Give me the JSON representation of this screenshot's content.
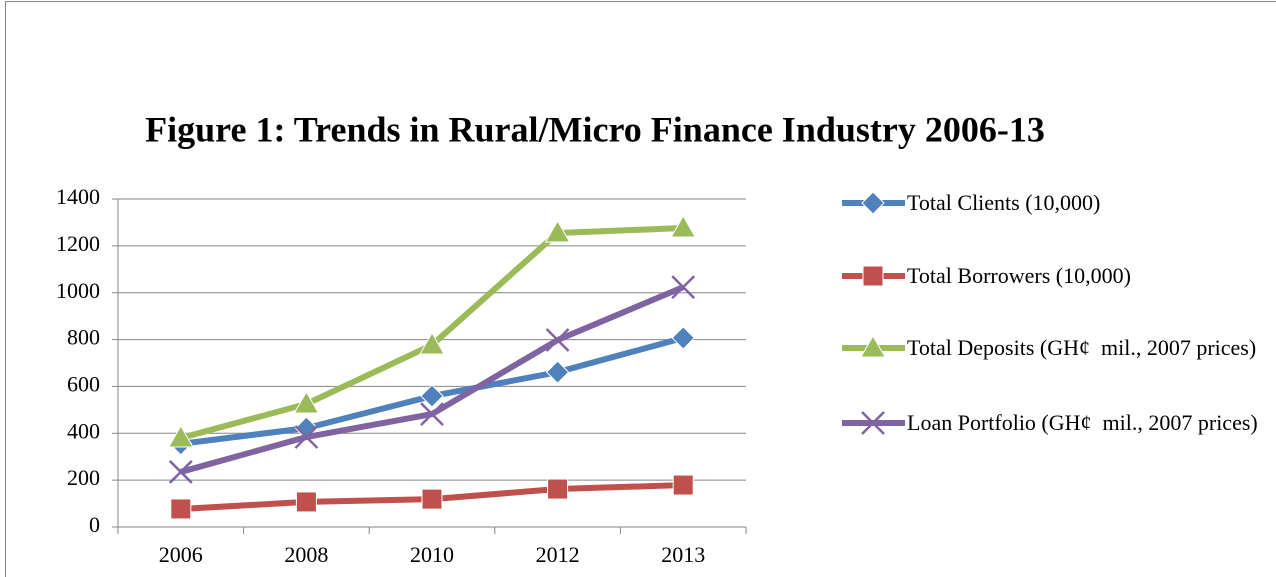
{
  "chart_data": {
    "type": "line",
    "title": "Figure 1: Trends in Rural/Micro Finance Industry 2006-13",
    "categories": [
      "2006",
      "2008",
      "2010",
      "2012",
      "2013"
    ],
    "series": [
      {
        "name": "Total Clients (10,000)",
        "color": "#4f81bd",
        "marker": "diamond",
        "values": [
          355,
          422,
          559,
          661,
          807
        ]
      },
      {
        "name": "Total Borrowers (10,000)",
        "color": "#c0504d",
        "marker": "square",
        "values": [
          77,
          107,
          119,
          162,
          179
        ]
      },
      {
        "name": "Total Deposits (GH¢  mil., 2007 prices)",
        "color": "#9bbb59",
        "marker": "triangle",
        "values": [
          380,
          525,
          777,
          1255,
          1276
        ]
      },
      {
        "name": "Loan Portfolio (GH¢  mil., 2007 prices)",
        "color": "#8064a2",
        "marker": "x",
        "values": [
          235,
          384,
          482,
          798,
          1024
        ]
      }
    ],
    "ylim": [
      0,
      1400
    ],
    "yticks": [
      0,
      200,
      400,
      600,
      800,
      1000,
      1200,
      1400
    ],
    "grid": true,
    "legend": "right"
  }
}
